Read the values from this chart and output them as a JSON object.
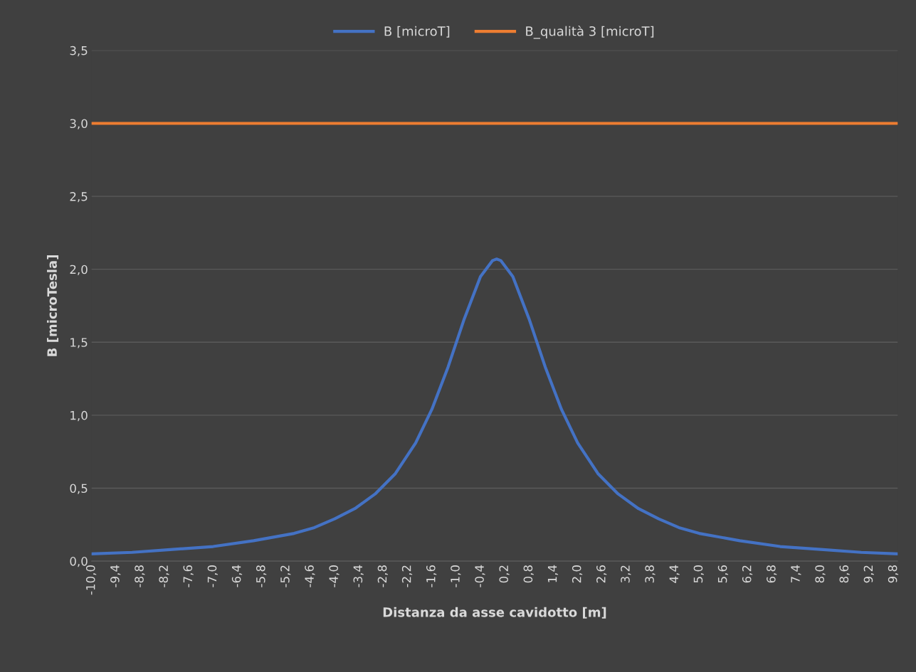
{
  "chart_data": {
    "type": "line",
    "xlabel": "Distanza da asse cavidotto [m]",
    "ylabel": "B [microTesla]",
    "xlim": [
      -10,
      9.9
    ],
    "ylim": [
      0,
      3.5
    ],
    "xticks": [
      {
        "value": -10,
        "label": "-10,0"
      },
      {
        "value": -9.4,
        "label": "-9,4"
      },
      {
        "value": -8.8,
        "label": "-8,8"
      },
      {
        "value": -8.2,
        "label": "-8,2"
      },
      {
        "value": -7.6,
        "label": "-7,6"
      },
      {
        "value": -7,
        "label": "-7,0"
      },
      {
        "value": -6.4,
        "label": "-6,4"
      },
      {
        "value": -5.8,
        "label": "-5,8"
      },
      {
        "value": -5.2,
        "label": "-5,2"
      },
      {
        "value": -4.6,
        "label": "-4,6"
      },
      {
        "value": -4,
        "label": "-4,0"
      },
      {
        "value": -3.4,
        "label": "-3,4"
      },
      {
        "value": -2.8,
        "label": "-2,8"
      },
      {
        "value": -2.2,
        "label": "-2,2"
      },
      {
        "value": -1.6,
        "label": "-1,6"
      },
      {
        "value": -1,
        "label": "-1,0"
      },
      {
        "value": -0.4,
        "label": "-0,4"
      },
      {
        "value": 0.2,
        "label": "0,2"
      },
      {
        "value": 0.8,
        "label": "0,8"
      },
      {
        "value": 1.4,
        "label": "1,4"
      },
      {
        "value": 2,
        "label": "2,0"
      },
      {
        "value": 2.6,
        "label": "2,6"
      },
      {
        "value": 3.2,
        "label": "3,2"
      },
      {
        "value": 3.8,
        "label": "3,8"
      },
      {
        "value": 4.4,
        "label": "4,4"
      },
      {
        "value": 5,
        "label": "5,0"
      },
      {
        "value": 5.6,
        "label": "5,6"
      },
      {
        "value": 6.2,
        "label": "6,2"
      },
      {
        "value": 6.8,
        "label": "6,8"
      },
      {
        "value": 7.4,
        "label": "7,4"
      },
      {
        "value": 8,
        "label": "8,0"
      },
      {
        "value": 8.6,
        "label": "8,6"
      },
      {
        "value": 9.2,
        "label": "9,2"
      },
      {
        "value": 9.8,
        "label": "9,8"
      }
    ],
    "yticks": [
      {
        "value": 0,
        "label": "0,0"
      },
      {
        "value": 0.5,
        "label": "0,5"
      },
      {
        "value": 1,
        "label": "1,0"
      },
      {
        "value": 1.5,
        "label": "1,5"
      },
      {
        "value": 2,
        "label": "2,0"
      },
      {
        "value": 2.5,
        "label": "2,5"
      },
      {
        "value": 3,
        "label": "3,0"
      },
      {
        "value": 3.5,
        "label": "3,5"
      }
    ],
    "grid": "y",
    "legend": "top",
    "marker": "none",
    "line_style": "solid",
    "series": [
      {
        "name": "B [microT]",
        "color": "#4472c4",
        "x": [
          -10,
          -9,
          -8,
          -7,
          -6,
          -5,
          -4.5,
          -4,
          -3.5,
          -3,
          -2.5,
          -2,
          -1.6,
          -1.2,
          -0.8,
          -0.4,
          -0.1,
          0,
          0.1,
          0.4,
          0.8,
          1.2,
          1.6,
          2,
          2.5,
          3,
          3.5,
          4,
          4.5,
          5,
          6,
          7,
          8,
          9,
          9.9
        ],
        "values": [
          0.05,
          0.06,
          0.08,
          0.1,
          0.14,
          0.19,
          0.23,
          0.29,
          0.36,
          0.46,
          0.6,
          0.81,
          1.04,
          1.33,
          1.66,
          1.95,
          2.06,
          2.07,
          2.06,
          1.95,
          1.66,
          1.33,
          1.04,
          0.81,
          0.6,
          0.46,
          0.36,
          0.29,
          0.23,
          0.19,
          0.14,
          0.1,
          0.08,
          0.06,
          0.05
        ]
      },
      {
        "name": "B_qualità 3 [microT]",
        "color": "#ed7d31",
        "x": [
          -10,
          9.9
        ],
        "values": [
          3,
          3
        ]
      }
    ]
  }
}
